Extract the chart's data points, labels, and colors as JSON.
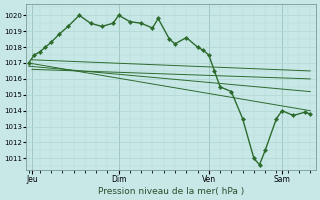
{
  "background_color": "#c8e8e8",
  "plot_bg_color": "#c8e8e8",
  "line_color": "#2d6b2d",
  "marker_color": "#2d6b2d",
  "grid_color": "#b0d8d0",
  "xlabel": "Pression niveau de la mer( hPa )",
  "yticks": [
    1011,
    1012,
    1013,
    1014,
    1015,
    1016,
    1017,
    1018,
    1019,
    1020
  ],
  "ylim": [
    1010.3,
    1020.7
  ],
  "xtick_labels": [
    "Jeu",
    "Dim",
    "Ven",
    "Sam"
  ],
  "xtick_positions": [
    0.3,
    8.0,
    16.0,
    22.5
  ],
  "xlim": [
    -0.2,
    25.5
  ],
  "series1_x": [
    0.0,
    0.5,
    1.0,
    1.5,
    2.0,
    2.7,
    3.5,
    4.5,
    5.5,
    6.5,
    7.5,
    8.0,
    9.0,
    10.0,
    11.0,
    11.5,
    12.5,
    13.0,
    14.0,
    15.0,
    15.5,
    16.0,
    16.5,
    17.0,
    18.0,
    19.0,
    20.0,
    20.5,
    21.0,
    22.0,
    22.5,
    23.5,
    24.5,
    25.0
  ],
  "series1_y": [
    1017.0,
    1017.5,
    1017.7,
    1018.0,
    1018.3,
    1018.8,
    1019.3,
    1020.0,
    1019.5,
    1019.3,
    1019.5,
    1020.0,
    1019.6,
    1019.5,
    1019.2,
    1019.8,
    1018.5,
    1018.2,
    1018.6,
    1018.0,
    1017.8,
    1017.5,
    1016.5,
    1015.5,
    1015.2,
    1013.5,
    1011.0,
    1010.6,
    1011.5,
    1013.5,
    1014.0,
    1013.7,
    1013.9,
    1013.8
  ],
  "series2_x": [
    0.0,
    25.0
  ],
  "series2_y": [
    1017.0,
    1014.0
  ],
  "series3_x": [
    0.0,
    25.0
  ],
  "series3_y": [
    1016.8,
    1015.2
  ],
  "series4_x": [
    0.3,
    25.0
  ],
  "series4_y": [
    1016.6,
    1016.0
  ],
  "series5_x": [
    0.3,
    25.0
  ],
  "series5_y": [
    1017.2,
    1016.5
  ]
}
